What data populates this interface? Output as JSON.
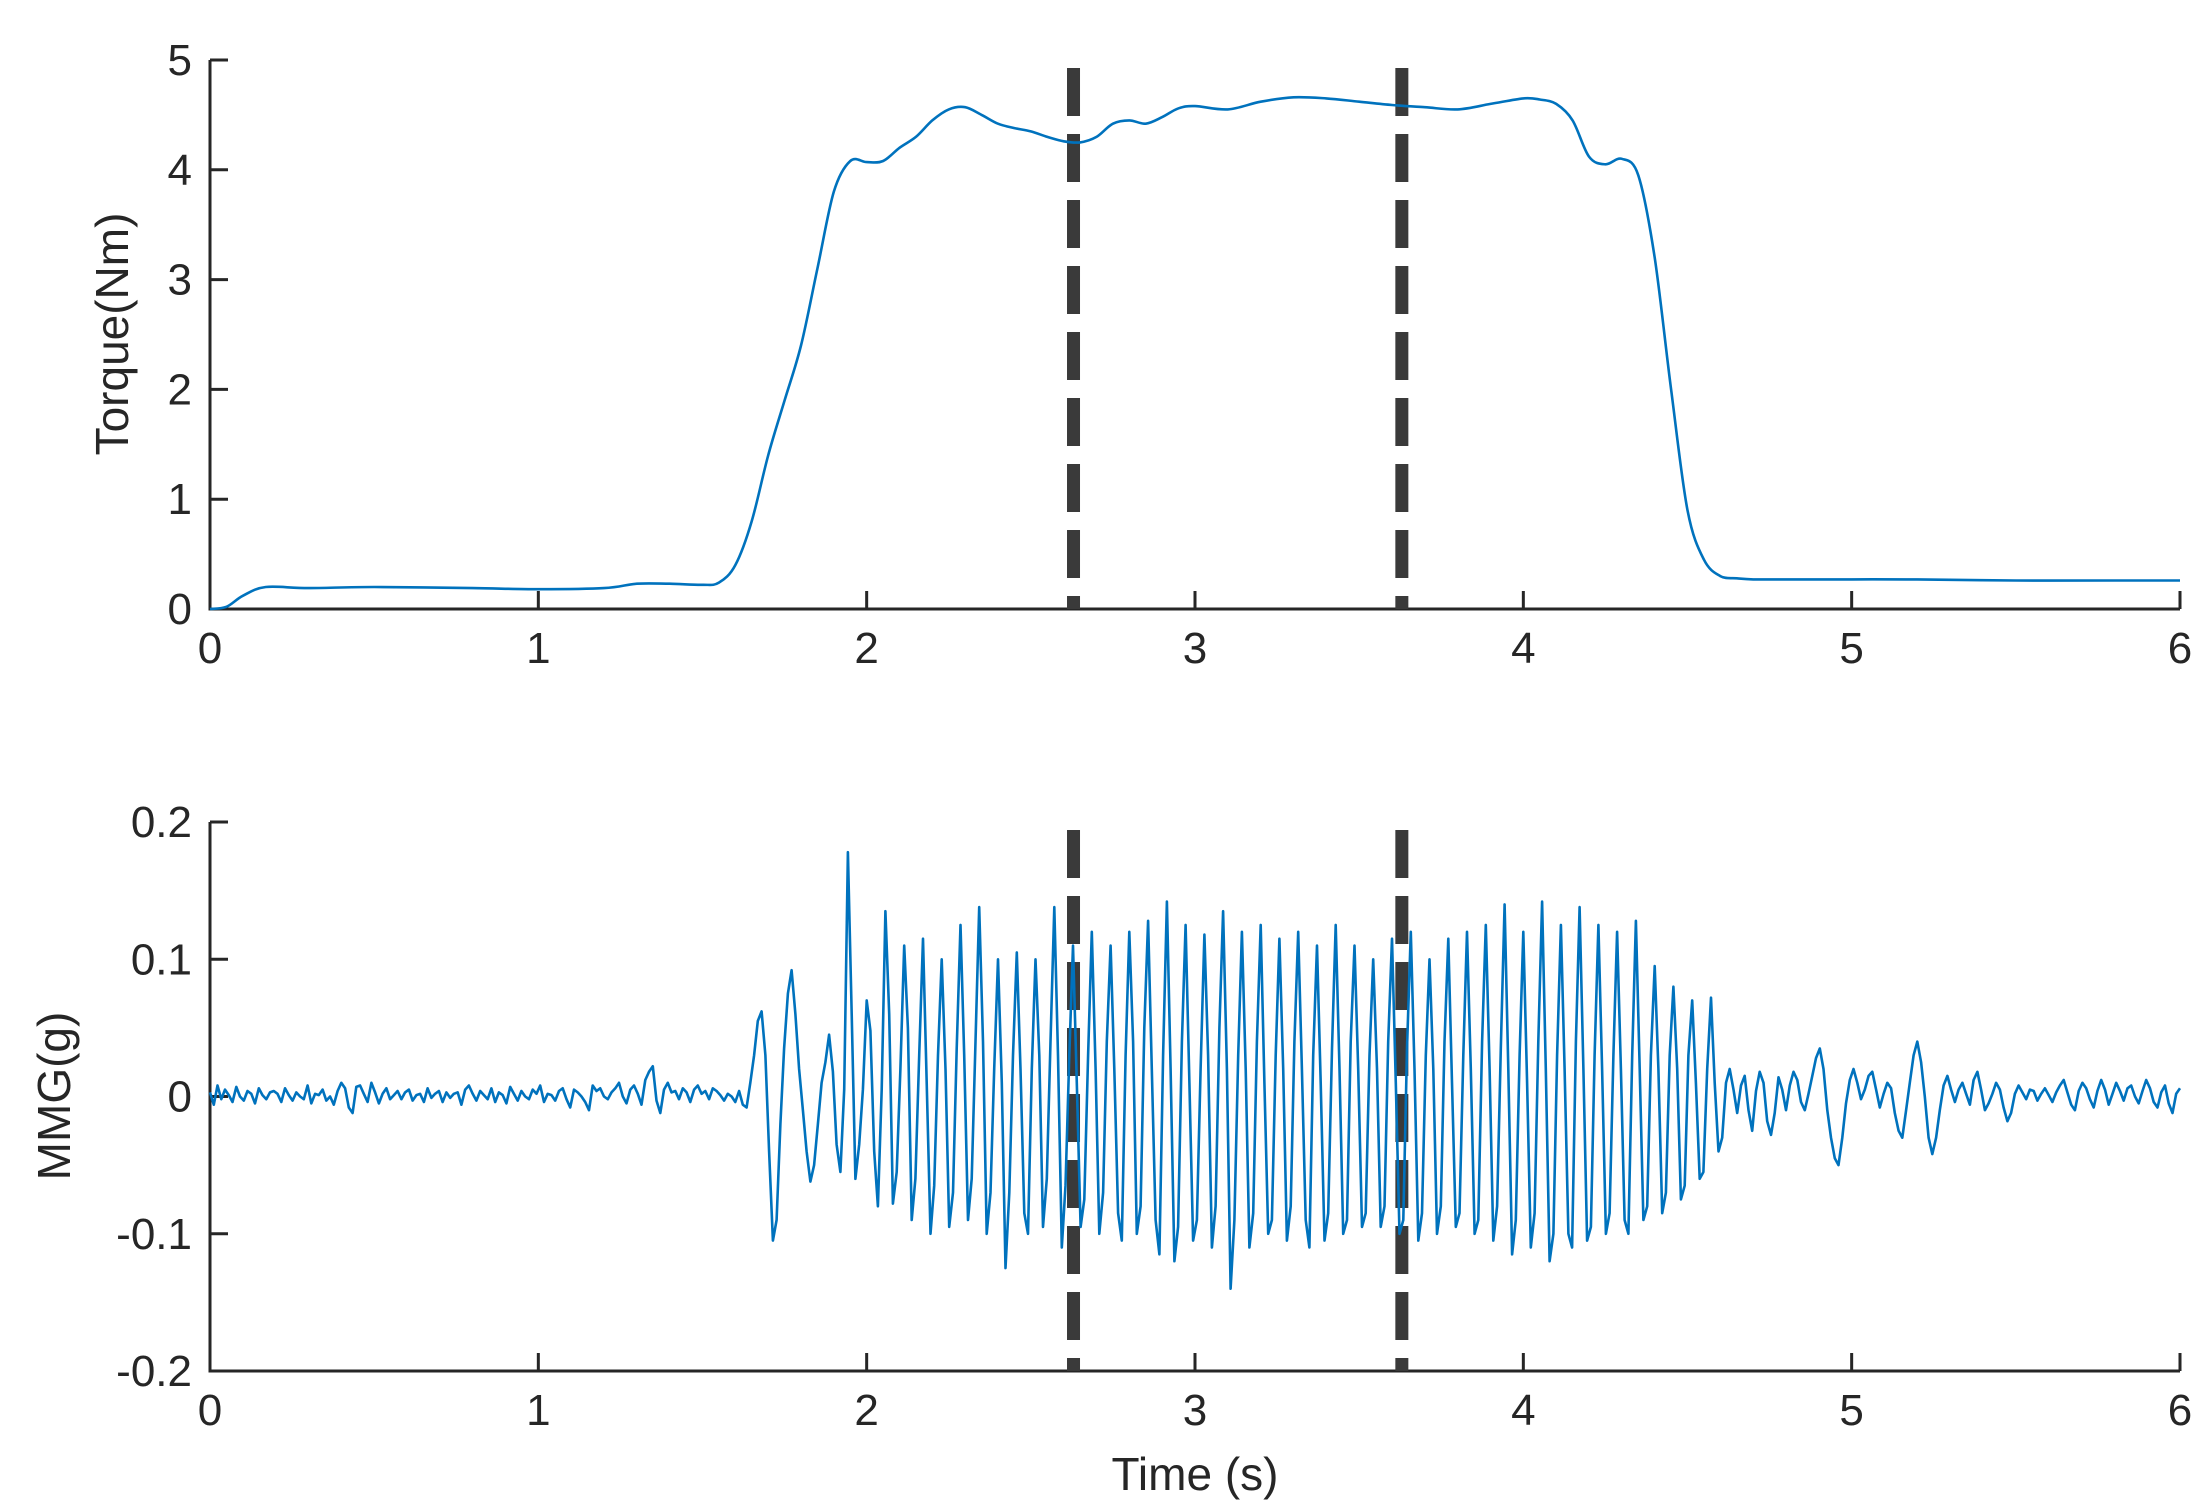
{
  "colors": {
    "series": "#0072BD",
    "marker": "#3a3a3a",
    "axis": "#262626"
  },
  "chart_data": [
    {
      "type": "line",
      "title": "",
      "xlabel": "",
      "ylabel": "Torque(Nm)",
      "xlim": [
        0,
        6
      ],
      "ylim": [
        0,
        5
      ],
      "xticks": [
        "0",
        "1",
        "2",
        "3",
        "4",
        "5",
        "6"
      ],
      "yticks": [
        "0",
        "1",
        "2",
        "3",
        "4",
        "5"
      ],
      "grid": false,
      "vertical_markers": [
        2.63,
        3.63
      ],
      "series": [
        {
          "x": [
            0,
            0.05,
            0.1,
            0.17,
            0.3,
            0.5,
            0.8,
            1.0,
            1.2,
            1.3,
            1.4,
            1.5,
            1.55,
            1.6,
            1.65,
            1.7,
            1.75,
            1.8,
            1.85,
            1.9,
            1.95,
            2.0,
            2.05,
            2.1,
            2.15,
            2.2,
            2.25,
            2.3,
            2.35,
            2.4,
            2.45,
            2.5,
            2.55,
            2.6,
            2.65,
            2.7,
            2.75,
            2.8,
            2.85,
            2.9,
            2.95,
            3.0,
            3.1,
            3.2,
            3.3,
            3.4,
            3.5,
            3.6,
            3.7,
            3.8,
            3.9,
            4.0,
            4.05,
            4.1,
            4.15,
            4.2,
            4.25,
            4.3,
            4.35,
            4.4,
            4.45,
            4.5,
            4.55,
            4.6,
            4.65,
            4.7,
            4.8,
            5.0,
            5.2,
            5.5,
            5.8,
            6.0
          ],
          "values": [
            0,
            0.02,
            0.12,
            0.2,
            0.19,
            0.2,
            0.19,
            0.18,
            0.19,
            0.23,
            0.23,
            0.22,
            0.24,
            0.4,
            0.8,
            1.4,
            1.9,
            2.4,
            3.1,
            3.8,
            4.08,
            4.07,
            4.08,
            4.2,
            4.3,
            4.45,
            4.55,
            4.57,
            4.5,
            4.42,
            4.38,
            4.35,
            4.3,
            4.26,
            4.25,
            4.3,
            4.42,
            4.45,
            4.42,
            4.48,
            4.56,
            4.58,
            4.55,
            4.62,
            4.66,
            4.65,
            4.62,
            4.59,
            4.57,
            4.55,
            4.6,
            4.65,
            4.64,
            4.6,
            4.45,
            4.12,
            4.05,
            4.1,
            3.95,
            3.2,
            2.0,
            0.9,
            0.45,
            0.3,
            0.28,
            0.27,
            0.27,
            0.27,
            0.27,
            0.26,
            0.26,
            0.26
          ]
        }
      ]
    },
    {
      "type": "line",
      "title": "",
      "xlabel": "Time (s)",
      "ylabel": "MMG(g)",
      "xlim": [
        0,
        6
      ],
      "ylim": [
        -0.2,
        0.2
      ],
      "xticks": [
        "0",
        "1",
        "2",
        "3",
        "4",
        "5",
        "6"
      ],
      "yticks": [
        "-0.2",
        "-0.1",
        "0",
        "0.1",
        "0.2"
      ],
      "grid": false,
      "vertical_markers": [
        2.63,
        3.63
      ],
      "series": [
        {
          "sample_rate": "100 points per second",
          "x_range": [
            0,
            6
          ],
          "values": [
            0.003,
            -0.006,
            0.008,
            -0.002,
            0.005,
            0.001,
            -0.004,
            0.007,
            0.0,
            -0.003,
            0.004,
            0.002,
            -0.005,
            0.006,
            0.001,
            -0.002,
            0.003,
            0.004,
            0.002,
            -0.004,
            0.006,
            0.001,
            -0.003,
            0.003,
            0.0,
            -0.002,
            0.008,
            -0.005,
            0.002,
            0.001,
            0.005,
            -0.003,
            0.0,
            -0.006,
            0.004,
            0.01,
            0.006,
            -0.008,
            -0.012,
            0.007,
            0.008,
            0.002,
            -0.004,
            0.01,
            0.003,
            -0.005,
            0.002,
            0.006,
            -0.002,
            0.001,
            0.004,
            -0.002,
            0.003,
            0.005,
            -0.003,
            0.001,
            0.002,
            -0.004,
            0.006,
            -0.001,
            0.002,
            0.004,
            -0.004,
            0.003,
            -0.001,
            0.002,
            0.003,
            -0.006,
            0.005,
            0.008,
            0.002,
            -0.003,
            0.004,
            0.001,
            -0.002,
            0.006,
            -0.004,
            0.003,
            0.001,
            -0.005,
            0.007,
            0.002,
            -0.003,
            0.004,
            0.0,
            -0.002,
            0.005,
            0.002,
            0.008,
            -0.004,
            0.002,
            0.001,
            -0.003,
            0.004,
            0.006,
            -0.002,
            -0.008,
            0.005,
            0.003,
            0.0,
            -0.004,
            -0.01,
            0.008,
            0.004,
            0.006,
            0.0,
            -0.002,
            0.003,
            0.006,
            0.01,
            0.0,
            -0.005,
            0.005,
            0.008,
            0.002,
            -0.006,
            0.012,
            0.018,
            0.022,
            -0.003,
            -0.012,
            0.005,
            0.01,
            0.003,
            0.004,
            -0.002,
            0.006,
            0.003,
            -0.004,
            0.005,
            0.008,
            0.002,
            0.004,
            -0.002,
            0.006,
            0.004,
            0.001,
            -0.003,
            0.002,
            0.0,
            -0.004,
            0.004,
            -0.006,
            -0.008,
            0.01,
            0.03,
            0.055,
            0.062,
            0.03,
            -0.04,
            -0.105,
            -0.09,
            -0.02,
            0.035,
            0.075,
            0.092,
            0.06,
            0.02,
            -0.01,
            -0.04,
            -0.062,
            -0.05,
            -0.02,
            0.01,
            0.025,
            0.045,
            0.018,
            -0.035,
            -0.055,
            0.005,
            0.178,
            0.06,
            -0.06,
            -0.035,
            0.005,
            0.07,
            0.048,
            -0.04,
            -0.08,
            0.005,
            0.135,
            0.06,
            -0.078,
            -0.055,
            0.02,
            0.11,
            0.05,
            -0.09,
            -0.06,
            0.03,
            0.115,
            0.01,
            -0.1,
            -0.065,
            0.03,
            0.1,
            0.02,
            -0.095,
            -0.07,
            0.035,
            0.125,
            0.03,
            -0.09,
            -0.06,
            0.04,
            0.138,
            0.04,
            -0.1,
            -0.07,
            0.02,
            0.1,
            0.01,
            -0.125,
            -0.07,
            0.03,
            0.105,
            0.02,
            -0.085,
            -0.1,
            0.02,
            0.1,
            0.03,
            -0.095,
            -0.06,
            0.04,
            0.138,
            0.03,
            -0.11,
            -0.065,
            0.03,
            0.11,
            0.01,
            -0.095,
            -0.075,
            0.03,
            0.12,
            0.02,
            -0.1,
            -0.07,
            0.04,
            0.11,
            0.02,
            -0.085,
            -0.105,
            0.03,
            0.12,
            0.04,
            -0.1,
            -0.08,
            0.05,
            0.128,
            0.02,
            -0.09,
            -0.115,
            0.03,
            0.142,
            0.02,
            -0.12,
            -0.095,
            0.04,
            0.125,
            0.01,
            -0.105,
            -0.09,
            0.02,
            0.118,
            0.03,
            -0.11,
            -0.08,
            0.05,
            0.135,
            0.02,
            -0.14,
            -0.09,
            0.03,
            0.12,
            0.02,
            -0.11,
            -0.085,
            0.04,
            0.125,
            0.01,
            -0.1,
            -0.09,
            0.03,
            0.115,
            0.02,
            -0.105,
            -0.08,
            0.04,
            0.12,
            0.02,
            -0.09,
            -0.11,
            0.03,
            0.11,
            0.01,
            -0.105,
            -0.085,
            0.035,
            0.125,
            0.02,
            -0.1,
            -0.09,
            0.04,
            0.11,
            0.02,
            -0.095,
            -0.085,
            0.03,
            0.1,
            0.02,
            -0.095,
            -0.08,
            0.04,
            0.115,
            0.01,
            -0.1,
            -0.09,
            0.035,
            0.12,
            0.02,
            -0.105,
            -0.085,
            0.03,
            0.1,
            0.02,
            -0.1,
            -0.08,
            0.04,
            0.115,
            0.01,
            -0.095,
            -0.085,
            0.03,
            0.12,
            0.02,
            -0.1,
            -0.09,
            0.04,
            0.125,
            0.02,
            -0.105,
            -0.08,
            0.035,
            0.14,
            0.02,
            -0.115,
            -0.09,
            0.03,
            0.12,
            0.01,
            -0.11,
            -0.085,
            0.04,
            0.142,
            0.02,
            -0.12,
            -0.1,
            0.03,
            0.125,
            0.02,
            -0.1,
            -0.11,
            0.04,
            0.138,
            0.02,
            -0.105,
            -0.095,
            0.03,
            0.125,
            0.02,
            -0.1,
            -0.085,
            0.03,
            0.12,
            0.02,
            -0.09,
            -0.1,
            0.03,
            0.128,
            0.02,
            -0.09,
            -0.08,
            0.03,
            0.095,
            0.02,
            -0.085,
            -0.07,
            0.03,
            0.08,
            0.02,
            -0.075,
            -0.065,
            0.03,
            0.07,
            0.01,
            -0.06,
            -0.055,
            0.02,
            0.072,
            0.01,
            -0.04,
            -0.03,
            0.01,
            0.02,
            0.005,
            -0.012,
            0.008,
            0.015,
            -0.01,
            -0.025,
            0.004,
            0.018,
            0.01,
            -0.018,
            -0.028,
            -0.012,
            0.014,
            0.005,
            -0.01,
            0.008,
            0.018,
            0.012,
            -0.004,
            -0.01,
            0.002,
            0.015,
            0.028,
            0.035,
            0.02,
            -0.01,
            -0.03,
            -0.045,
            -0.05,
            -0.03,
            -0.005,
            0.012,
            0.02,
            0.01,
            -0.002,
            0.005,
            0.015,
            0.018,
            0.005,
            -0.008,
            0.002,
            0.01,
            0.006,
            -0.012,
            -0.025,
            -0.03,
            -0.01,
            0.01,
            0.03,
            0.04,
            0.025,
            0.0,
            -0.03,
            -0.042,
            -0.03,
            -0.01,
            0.008,
            0.015,
            0.005,
            -0.004,
            0.005,
            0.01,
            0.002,
            -0.006,
            0.012,
            0.018,
            0.005,
            -0.01,
            -0.005,
            0.002,
            0.01,
            0.005,
            -0.008,
            -0.018,
            -0.012,
            0.002,
            0.008,
            0.003,
            -0.002,
            0.005,
            0.004,
            -0.003,
            0.002,
            0.006,
            0.001,
            -0.004,
            0.003,
            0.008,
            0.012,
            0.003,
            -0.006,
            -0.01,
            0.004,
            0.01,
            0.006,
            -0.002,
            -0.008,
            0.004,
            0.012,
            0.005,
            -0.006,
            0.002,
            0.01,
            0.004,
            -0.003,
            0.006,
            0.008,
            0.0,
            -0.005,
            0.004,
            0.012,
            0.006,
            -0.004,
            -0.008,
            0.003,
            0.008,
            -0.005,
            -0.012,
            0.002,
            0.006
          ]
        }
      ]
    }
  ]
}
